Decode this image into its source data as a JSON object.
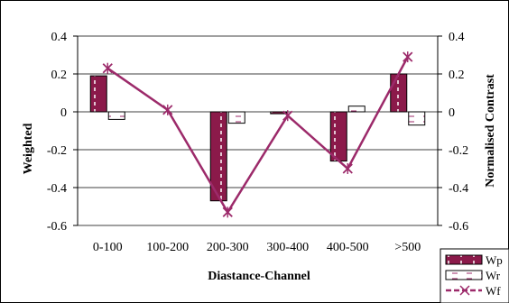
{
  "chart_data": {
    "type": "bar",
    "categories": [
      "0-100",
      "100-200",
      "200-300",
      "300-400",
      "400-500",
      ">500"
    ],
    "xlabel": "Diastance-Channel",
    "ylabel_left": "Weighted",
    "ylabel_right": "Normalised Contrast",
    "ylim_left": [
      -0.6,
      0.4
    ],
    "ylim_right": [
      -0.6,
      0.4
    ],
    "yticks_left": [
      "0.4",
      "0.2",
      "0",
      "-0.2",
      "-0.4",
      "-0.6"
    ],
    "yticks_right": [
      "0.4",
      "0.2",
      "0",
      "-0.2",
      "-0.4",
      "-0.6"
    ],
    "grid": true,
    "legend_position": "bottom-right",
    "series": [
      {
        "name": "Wp",
        "kind": "bar",
        "color": "#8b1a4a",
        "values": [
          0.19,
          null,
          -0.47,
          -0.01,
          -0.26,
          0.2
        ]
      },
      {
        "name": "Wr",
        "kind": "bar",
        "color": "#ffffff",
        "values": [
          -0.04,
          null,
          -0.06,
          null,
          0.03,
          -0.07
        ]
      },
      {
        "name": "Wf",
        "kind": "line",
        "color": "#9c2a6a",
        "values": [
          0.23,
          0.01,
          -0.53,
          -0.02,
          -0.3,
          0.29
        ]
      }
    ]
  }
}
